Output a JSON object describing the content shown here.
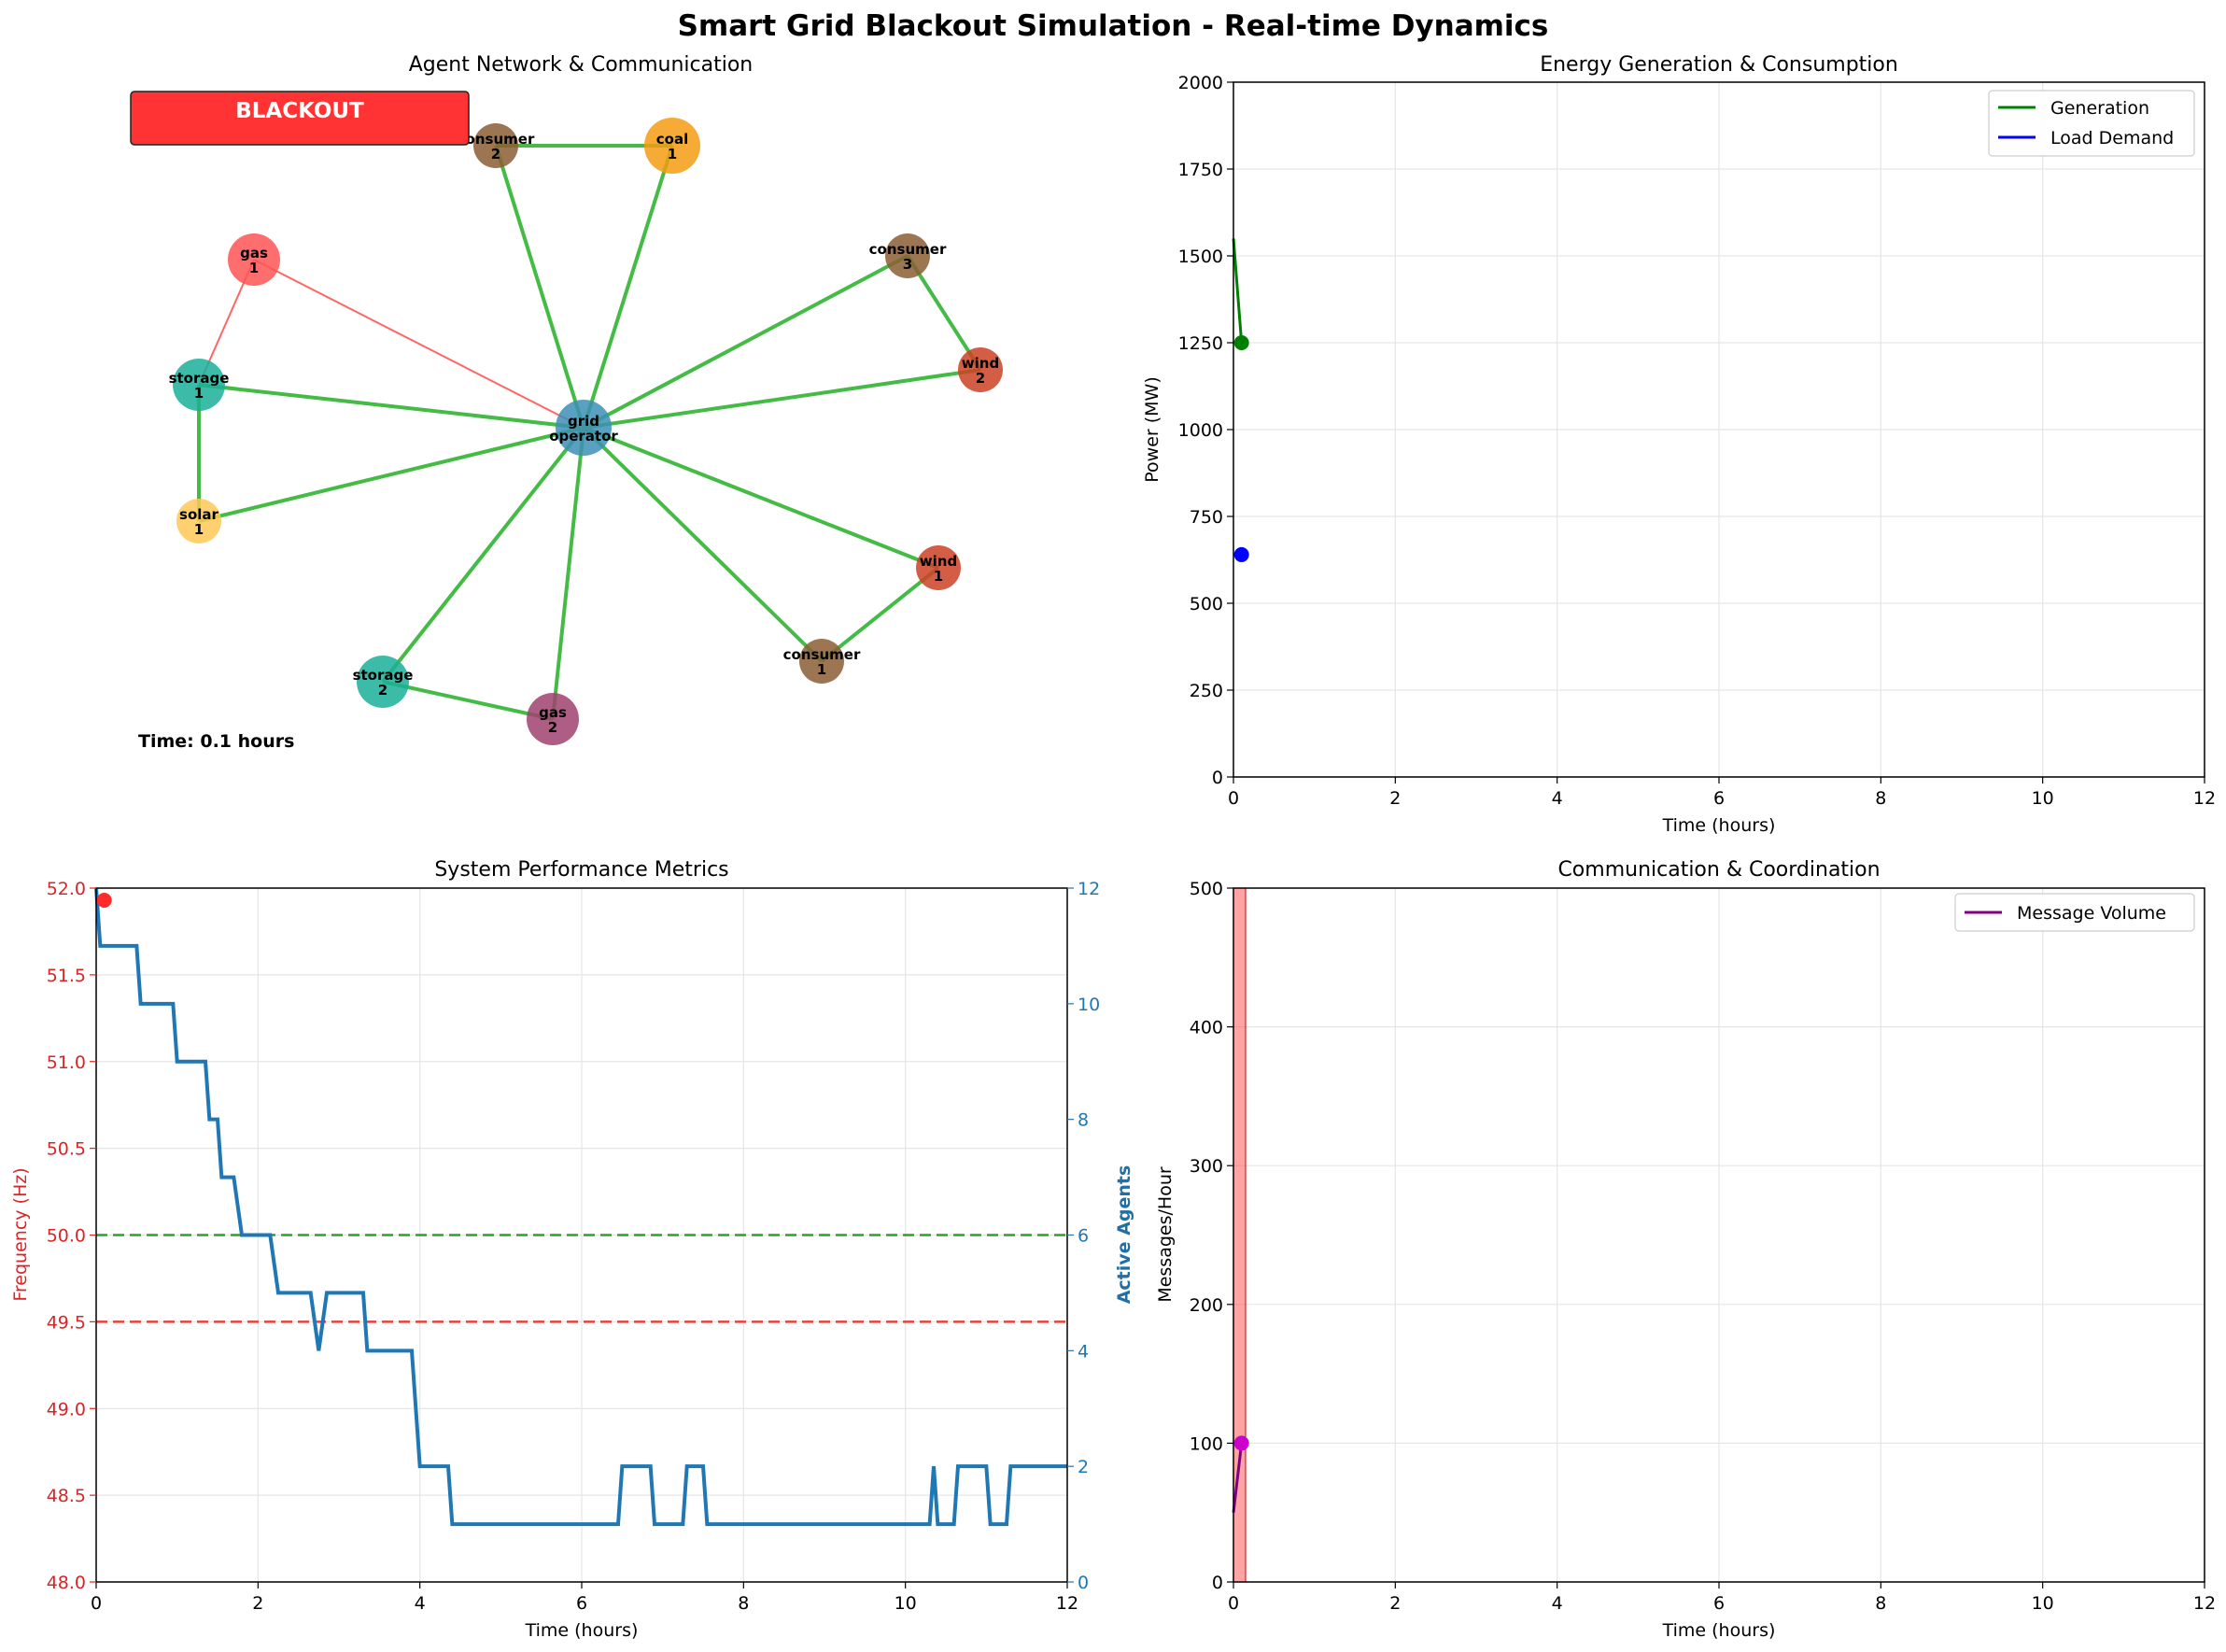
{
  "figure_title": "Smart Grid Blackout Simulation - Real-time Dynamics",
  "colors": {
    "link_active": "#44bb44",
    "link_failed": "#ff6666",
    "generation": "#008000",
    "load": "#0000ff",
    "frequency": "#d62728",
    "agents": "#1f77b4",
    "nominal": "#2ca02c",
    "threshold": "#e8413b",
    "messages": "#800080",
    "blackout": "#ff3333"
  },
  "chart_data": [
    {
      "type": "network",
      "title": "Agent Network & Communication",
      "status_label": "BLACKOUT",
      "time_label": "Time: 0.1 hours",
      "nodes": [
        {
          "id": "grid_operator",
          "label": [
            "grid",
            "operator"
          ],
          "color": "#3d8fb5",
          "size": "large"
        },
        {
          "id": "coal_1",
          "label": [
            "coal",
            "1"
          ],
          "color": "#f39c12",
          "size": "large"
        },
        {
          "id": "consumer_2",
          "label": [
            "consumer",
            "2"
          ],
          "color": "#8b5e34",
          "size": "small"
        },
        {
          "id": "consumer_3",
          "label": [
            "consumer",
            "3"
          ],
          "color": "#8b5e34",
          "size": "small"
        },
        {
          "id": "consumer_1",
          "label": [
            "consumer",
            "1"
          ],
          "color": "#8b5e34",
          "size": "small"
        },
        {
          "id": "gas_1",
          "label": [
            "gas",
            "1"
          ],
          "color": "#ff5555",
          "size": "medium"
        },
        {
          "id": "gas_2",
          "label": [
            "gas",
            "2"
          ],
          "color": "#a0416e",
          "size": "medium"
        },
        {
          "id": "storage_1",
          "label": [
            "storage",
            "1"
          ],
          "color": "#1aaf9a",
          "size": "medium"
        },
        {
          "id": "storage_2",
          "label": [
            "storage",
            "2"
          ],
          "color": "#1aaf9a",
          "size": "medium"
        },
        {
          "id": "solar_1",
          "label": [
            "solar",
            "1"
          ],
          "color": "#ffc857",
          "size": "small"
        },
        {
          "id": "wind_2",
          "label": [
            "wind",
            "2"
          ],
          "color": "#cc4125",
          "size": "small"
        },
        {
          "id": "wind_1",
          "label": [
            "wind",
            "1"
          ],
          "color": "#cc4125",
          "size": "small"
        }
      ],
      "links": [
        {
          "from": "grid_operator",
          "to": "consumer_2",
          "status": "active"
        },
        {
          "from": "grid_operator",
          "to": "coal_1",
          "status": "active"
        },
        {
          "from": "grid_operator",
          "to": "consumer_3",
          "status": "active"
        },
        {
          "from": "grid_operator",
          "to": "wind_2",
          "status": "active"
        },
        {
          "from": "grid_operator",
          "to": "wind_1",
          "status": "active"
        },
        {
          "from": "grid_operator",
          "to": "consumer_1",
          "status": "active"
        },
        {
          "from": "grid_operator",
          "to": "gas_2",
          "status": "active"
        },
        {
          "from": "grid_operator",
          "to": "storage_2",
          "status": "active"
        },
        {
          "from": "grid_operator",
          "to": "solar_1",
          "status": "active"
        },
        {
          "from": "grid_operator",
          "to": "storage_1",
          "status": "active"
        },
        {
          "from": "grid_operator",
          "to": "gas_1",
          "status": "failed"
        },
        {
          "from": "consumer_2",
          "to": "coal_1",
          "status": "active"
        },
        {
          "from": "consumer_3",
          "to": "wind_2",
          "status": "active"
        },
        {
          "from": "wind_1",
          "to": "consumer_1",
          "status": "active"
        },
        {
          "from": "storage_2",
          "to": "gas_2",
          "status": "active"
        },
        {
          "from": "storage_1",
          "to": "solar_1",
          "status": "active"
        },
        {
          "from": "gas_1",
          "to": "storage_1",
          "status": "failed"
        }
      ]
    },
    {
      "type": "line",
      "title": "Energy Generation & Consumption",
      "xlabel": "Time (hours)",
      "ylabel": "Power (MW)",
      "xlim": [
        0,
        12
      ],
      "ylim": [
        0,
        2000
      ],
      "xticks": [
        "0",
        "2",
        "4",
        "6",
        "8",
        "10",
        "12"
      ],
      "yticks": [
        "0",
        "250",
        "500",
        "750",
        "1000",
        "1250",
        "1500",
        "1750",
        "2000"
      ],
      "grid": true,
      "legend_position": "top-right",
      "series": [
        {
          "name": "Generation",
          "x": [
            0,
            0.1
          ],
          "y": [
            1550,
            1250
          ],
          "marker_at_end": true
        },
        {
          "name": "Load Demand",
          "x": [
            0,
            0.1
          ],
          "y": [
            640,
            640
          ],
          "marker_at_end": true
        }
      ]
    },
    {
      "type": "line",
      "title": "System Performance Metrics",
      "xlabel": "Time (hours)",
      "ylabel": "Frequency (Hz)",
      "ylabel_right": "Active Agents",
      "xlim": [
        0,
        12
      ],
      "ylim": [
        48.0,
        52.0
      ],
      "ylim_right": [
        0,
        12
      ],
      "xticks": [
        "0",
        "2",
        "4",
        "6",
        "8",
        "10",
        "12"
      ],
      "yticks": [
        "48.0",
        "48.5",
        "49.0",
        "49.5",
        "50.0",
        "50.5",
        "51.0",
        "51.5",
        "52.0"
      ],
      "yticks_right": [
        "0",
        "2",
        "4",
        "6",
        "8",
        "10",
        "12"
      ],
      "grid": true,
      "reference_lines": [
        {
          "y": 50.0,
          "style": "dashed",
          "meaning": "nominal"
        },
        {
          "y": 49.5,
          "style": "dashed",
          "meaning": "threshold"
        }
      ],
      "series": [
        {
          "name": "Frequency",
          "x": [
            0.1
          ],
          "y": [
            51.93
          ],
          "axis": "left"
        },
        {
          "name": "Active Agents",
          "axis": "right",
          "step": true,
          "points": [
            [
              0,
              12
            ],
            [
              0.05,
              11
            ],
            [
              0.5,
              11
            ],
            [
              0.55,
              10
            ],
            [
              0.95,
              10
            ],
            [
              1.0,
              9
            ],
            [
              1.35,
              9
            ],
            [
              1.4,
              8
            ],
            [
              1.5,
              8
            ],
            [
              1.55,
              7
            ],
            [
              1.7,
              7
            ],
            [
              1.8,
              6
            ],
            [
              2.15,
              6
            ],
            [
              2.25,
              5
            ],
            [
              2.65,
              5
            ],
            [
              2.75,
              4
            ],
            [
              2.85,
              5
            ],
            [
              3.3,
              5
            ],
            [
              3.35,
              4
            ],
            [
              3.9,
              4
            ],
            [
              4.0,
              2
            ],
            [
              4.35,
              2
            ],
            [
              4.4,
              1
            ],
            [
              6.45,
              1
            ],
            [
              6.5,
              2
            ],
            [
              6.85,
              2
            ],
            [
              6.9,
              1
            ],
            [
              7.25,
              1
            ],
            [
              7.3,
              2
            ],
            [
              7.5,
              2
            ],
            [
              7.55,
              1
            ],
            [
              10.3,
              1
            ],
            [
              10.35,
              2
            ],
            [
              10.4,
              1
            ],
            [
              10.6,
              1
            ],
            [
              10.65,
              2
            ],
            [
              11.0,
              2
            ],
            [
              11.05,
              1
            ],
            [
              11.25,
              1
            ],
            [
              11.3,
              2
            ],
            [
              12.0,
              2
            ]
          ]
        }
      ]
    },
    {
      "type": "line",
      "title": "Communication & Coordination",
      "xlabel": "Time (hours)",
      "ylabel": "Messages/Hour",
      "xlim": [
        0,
        12
      ],
      "ylim": [
        0,
        500
      ],
      "xticks": [
        "0",
        "2",
        "4",
        "6",
        "8",
        "10",
        "12"
      ],
      "yticks": [
        "0",
        "100",
        "200",
        "300",
        "400",
        "500"
      ],
      "grid": true,
      "legend_position": "top-right",
      "highlight_span": [
        0,
        0.15
      ],
      "series": [
        {
          "name": "Message Volume",
          "x": [
            0,
            0.1
          ],
          "y": [
            50,
            100
          ],
          "marker_at_end": true
        }
      ]
    }
  ]
}
